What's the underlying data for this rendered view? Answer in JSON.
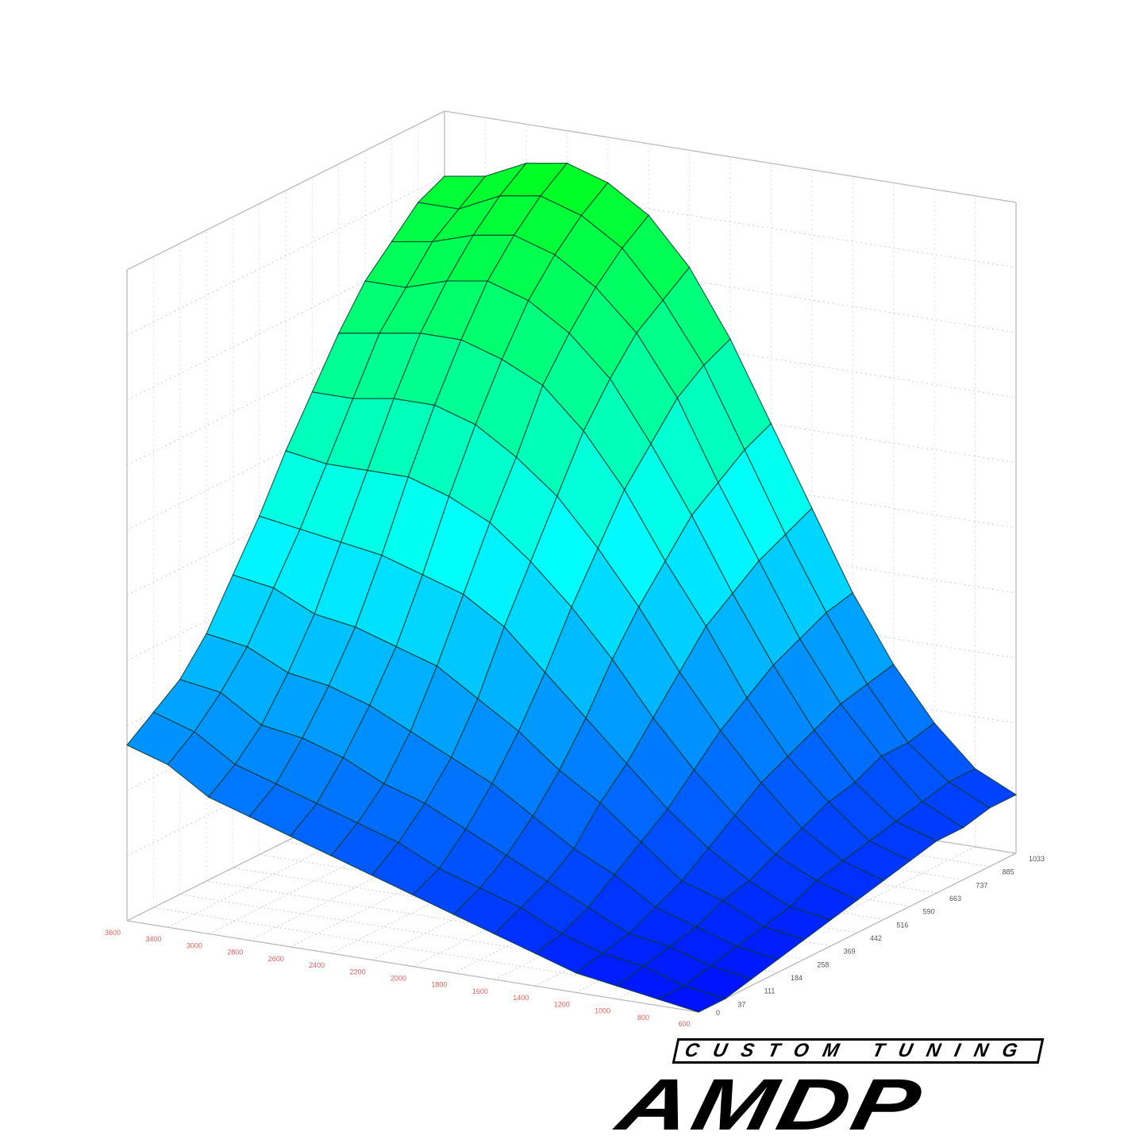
{
  "chart_data": {
    "type": "surface3d",
    "title": "",
    "x_axis": {
      "label": "",
      "tick_labels": [
        "3600",
        "3400",
        "3000",
        "2800",
        "2600",
        "2400",
        "2200",
        "2000",
        "1800",
        "1600",
        "1400",
        "1200",
        "1000",
        "800",
        "600"
      ],
      "tick_color": "#e06060"
    },
    "y_axis": {
      "label": "",
      "tick_labels": [
        "0",
        "37",
        "111",
        "184",
        "258",
        "369",
        "442",
        "516",
        "590",
        "663",
        "737",
        "885",
        "1033"
      ],
      "tick_color": "#555555"
    },
    "z_axis": {
      "label": "",
      "range": [
        0,
        100
      ],
      "tick_labels": []
    },
    "rpm": [
      600,
      800,
      1000,
      1200,
      1400,
      1600,
      1800,
      2000,
      2200,
      2400,
      2600,
      2800,
      3000,
      3400,
      3600
    ],
    "load": [
      0,
      37,
      111,
      184,
      258,
      369,
      442,
      516,
      590,
      663,
      737,
      885,
      1033
    ],
    "z": [
      [
        0,
        1,
        2,
        3,
        5,
        7,
        9,
        11,
        13,
        15,
        17,
        19,
        21,
        25,
        27
      ],
      [
        0,
        1,
        3,
        4,
        6,
        9,
        11,
        13,
        16,
        18,
        20,
        22,
        24,
        28,
        30
      ],
      [
        1,
        2,
        4,
        5,
        8,
        11,
        14,
        17,
        20,
        22,
        25,
        27,
        28,
        32,
        33
      ],
      [
        2,
        3,
        5,
        7,
        11,
        14,
        18,
        22,
        25,
        28,
        31,
        33,
        34,
        37,
        38
      ],
      [
        3,
        4,
        7,
        9,
        14,
        19,
        23,
        28,
        32,
        36,
        38,
        40,
        41,
        44,
        45
      ],
      [
        4,
        5,
        8,
        12,
        17,
        23,
        29,
        35,
        41,
        45,
        47,
        49,
        50,
        51,
        52
      ],
      [
        5,
        7,
        10,
        15,
        21,
        28,
        36,
        43,
        49,
        54,
        57,
        59,
        59,
        59,
        60
      ],
      [
        6,
        8,
        12,
        18,
        25,
        33,
        42,
        50,
        57,
        62,
        66,
        68,
        68,
        67,
        67
      ],
      [
        7,
        9,
        14,
        20,
        28,
        38,
        47,
        57,
        65,
        71,
        74,
        76,
        76,
        75,
        74
      ],
      [
        8,
        10,
        15,
        22,
        31,
        41,
        52,
        62,
        71,
        77,
        81,
        83,
        82,
        80,
        80
      ],
      [
        8,
        11,
        17,
        24,
        33,
        44,
        55,
        67,
        76,
        82,
        86,
        88,
        87,
        85,
        84
      ],
      [
        9,
        12,
        17,
        25,
        35,
        46,
        58,
        70,
        79,
        86,
        90,
        92,
        91,
        88,
        88
      ],
      [
        9,
        12,
        18,
        26,
        36,
        48,
        60,
        72,
        82,
        89,
        93,
        95,
        94,
        91,
        90
      ]
    ],
    "colormap": [
      "#0010ff",
      "#00ffff",
      "#00ff00"
    ],
    "grid": true,
    "legend": "none"
  },
  "logo": {
    "main": "AMDP",
    "sub": "CUSTOM TUNING"
  }
}
